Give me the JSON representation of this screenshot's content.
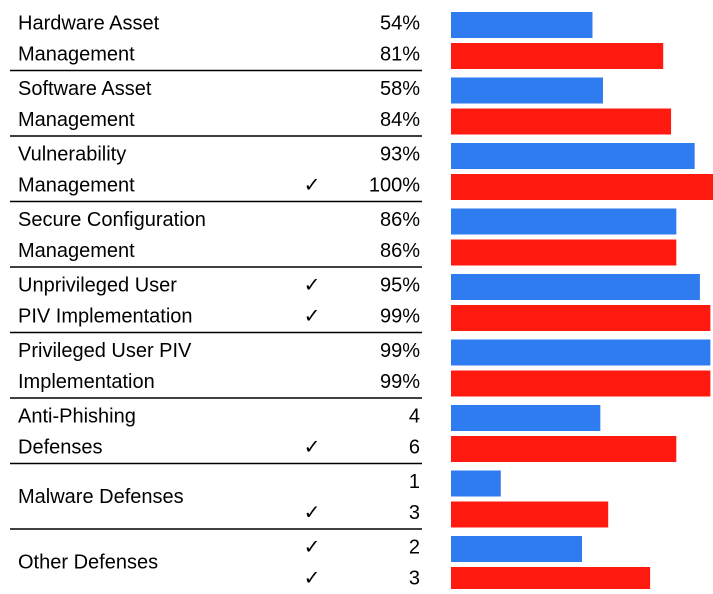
{
  "chart_data": {
    "type": "paired-bar-table",
    "xlim": [
      0,
      100
    ],
    "colors": [
      "#2f7bf0",
      "#ff1a10"
    ],
    "groups": [
      {
        "label": [
          "Hardware Asset",
          "Management"
        ],
        "rows": [
          {
            "check": null,
            "value": 54,
            "label": "54%",
            "bar": 54
          },
          {
            "check": null,
            "value": 81,
            "label": "81%",
            "bar": 81
          }
        ]
      },
      {
        "label": [
          "Software Asset",
          "Management"
        ],
        "rows": [
          {
            "check": null,
            "value": 58,
            "label": "58%",
            "bar": 58
          },
          {
            "check": null,
            "value": 84,
            "label": "84%",
            "bar": 84
          }
        ]
      },
      {
        "label": [
          "Vulnerability",
          "Management"
        ],
        "rows": [
          {
            "check": null,
            "value": 93,
            "label": "93%",
            "bar": 93
          },
          {
            "check": "✓",
            "value": 100,
            "label": "100%",
            "bar": 100
          }
        ]
      },
      {
        "label": [
          "Secure Configuration",
          "Management"
        ],
        "rows": [
          {
            "check": null,
            "value": 86,
            "label": "86%",
            "bar": 86
          },
          {
            "check": null,
            "value": 86,
            "label": "86%",
            "bar": 86
          }
        ]
      },
      {
        "label": [
          "Unprivileged User",
          "PIV Implementation"
        ],
        "rows": [
          {
            "check": "✓",
            "value": 95,
            "label": "95%",
            "bar": 95
          },
          {
            "check": "✓",
            "value": 99,
            "label": "99%",
            "bar": 99
          }
        ]
      },
      {
        "label": [
          "Privileged User PIV",
          "Implementation"
        ],
        "rows": [
          {
            "check": null,
            "value": 99,
            "label": "99%",
            "bar": 99
          },
          {
            "check": null,
            "value": 99,
            "label": "99%",
            "bar": 99
          }
        ]
      },
      {
        "label": [
          "Anti-Phishing",
          "Defenses"
        ],
        "rows": [
          {
            "check": null,
            "value": 4,
            "bar": 57
          },
          {
            "check": "✓",
            "value": 6,
            "bar": 86
          }
        ]
      },
      {
        "label": [
          "Malware Defenses"
        ],
        "rows": [
          {
            "check": null,
            "value": 1,
            "bar": 19
          },
          {
            "check": "✓",
            "value": 3,
            "bar": 60
          }
        ]
      },
      {
        "label": [
          "Other Defenses"
        ],
        "rows": [
          {
            "check": "✓",
            "value": 2,
            "bar": 50
          },
          {
            "check": "✓",
            "value": 3,
            "bar": 76
          }
        ]
      }
    ]
  }
}
